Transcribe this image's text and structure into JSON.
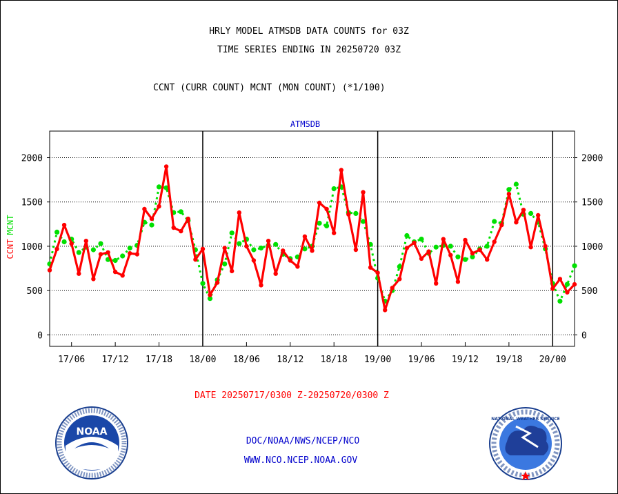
{
  "header": {
    "title_line1": "HRLY MODEL ATMSDB DATA COUNTS for 03Z",
    "title_line2": "TIME SERIES ENDING IN 20250720 03Z",
    "subtitle": "CCNT (CURR COUNT) MCNT (MON COUNT) (*1/100)"
  },
  "footer": {
    "date_range": "DATE 20250717/0300 Z-20250720/0300 Z",
    "link1": "DOC/NOAA/NWS/NCEP/NCO",
    "link2": "WWW.NCO.NCEP.NOAA.GOV"
  },
  "logos": {
    "noaa_text": "NOAA",
    "nws_text": "NATIONAL WEATHER SERVICE"
  },
  "colors": {
    "ccnt": "#ff0000",
    "mcnt": "#00e000",
    "panel_title": "#0000cc",
    "footer_link": "#0000cc",
    "date_text": "#ff0000"
  },
  "chart_data": {
    "type": "line",
    "title": "ATMSDB",
    "xlabel": "",
    "ylabel_series": [
      "CCNT",
      "MCNT"
    ],
    "ylim": [
      -130,
      2300
    ],
    "yticks": [
      0,
      500,
      1000,
      1500,
      2000
    ],
    "x_unit": "hours since 2025-07-17 03Z",
    "xlim": [
      0,
      72
    ],
    "xticks": [
      {
        "x": 3,
        "label": "17/06"
      },
      {
        "x": 9,
        "label": "17/12"
      },
      {
        "x": 15,
        "label": "17/18"
      },
      {
        "x": 21,
        "label": "18/00"
      },
      {
        "x": 27,
        "label": "18/06"
      },
      {
        "x": 33,
        "label": "18/12"
      },
      {
        "x": 39,
        "label": "18/18"
      },
      {
        "x": 45,
        "label": "19/00"
      },
      {
        "x": 51,
        "label": "19/06"
      },
      {
        "x": 57,
        "label": "19/12"
      },
      {
        "x": 63,
        "label": "19/18"
      },
      {
        "x": 69,
        "label": "20/00"
      }
    ],
    "day_boundaries": [
      21,
      45,
      69
    ],
    "grid": true,
    "legend": "left-vertical",
    "series": [
      {
        "name": "CCNT",
        "color": "#ff0000",
        "values": [
          730,
          970,
          1240,
          1030,
          690,
          1060,
          630,
          910,
          930,
          710,
          670,
          920,
          910,
          1420,
          1310,
          1450,
          1900,
          1210,
          1170,
          1310,
          850,
          970,
          450,
          590,
          980,
          720,
          1380,
          1000,
          840,
          560,
          1060,
          690,
          950,
          840,
          770,
          1110,
          950,
          1490,
          1420,
          1150,
          1860,
          1360,
          960,
          1610,
          760,
          700,
          280,
          530,
          630,
          980,
          1040,
          860,
          940,
          580,
          1080,
          900,
          600,
          1070,
          920,
          960,
          850,
          1050,
          1240,
          1590,
          1270,
          1410,
          990,
          1350,
          1000,
          520,
          630,
          480,
          570
        ]
      },
      {
        "name": "MCNT",
        "color": "#00e000",
        "values": [
          800,
          1160,
          1050,
          1080,
          930,
          990,
          960,
          1030,
          850,
          840,
          890,
          980,
          1010,
          1270,
          1240,
          1670,
          1660,
          1380,
          1390,
          1290,
          960,
          580,
          410,
          620,
          800,
          1150,
          1030,
          1080,
          960,
          980,
          1010,
          1020,
          910,
          860,
          880,
          970,
          1000,
          1260,
          1230,
          1650,
          1670,
          1380,
          1370,
          1280,
          1020,
          640,
          380,
          500,
          770,
          1120,
          1050,
          1080,
          920,
          990,
          1010,
          1000,
          880,
          850,
          880,
          970,
          1000,
          1280,
          1260,
          1640,
          1700,
          1360,
          1370,
          1270,
          970,
          580,
          380,
          570,
          780
        ]
      }
    ]
  }
}
